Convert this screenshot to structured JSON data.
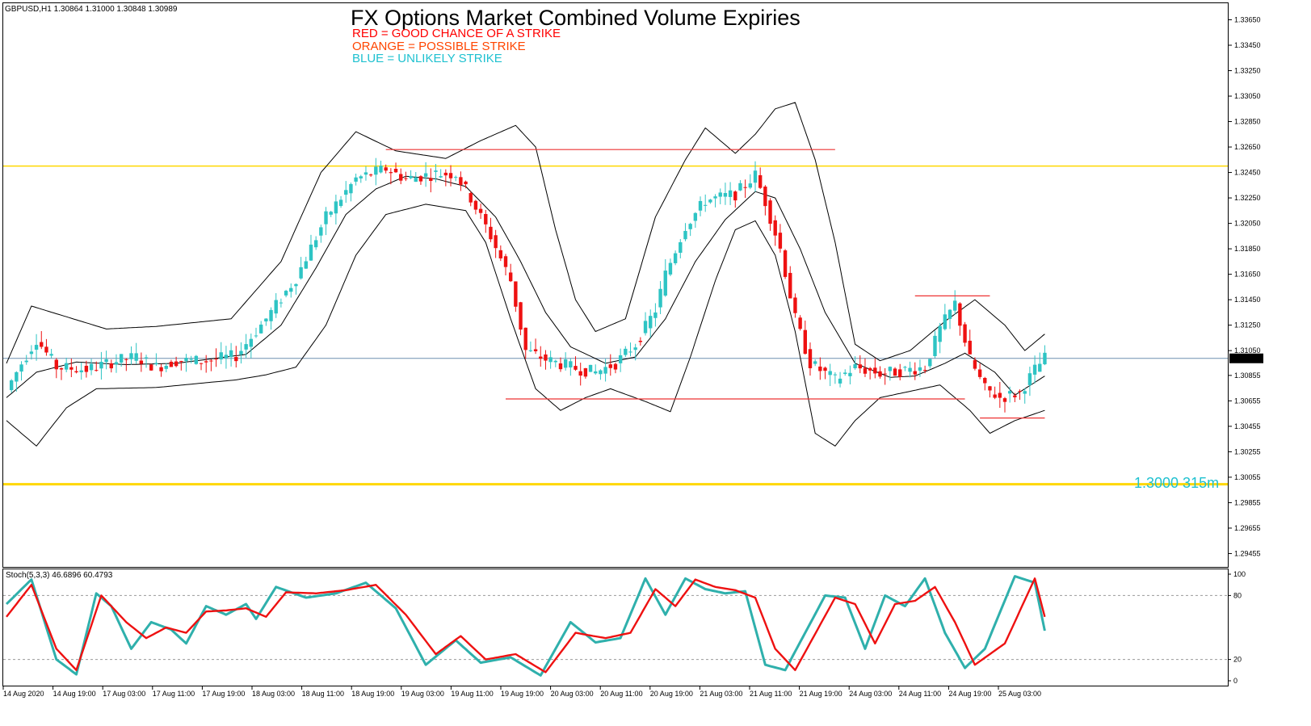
{
  "symbol_info": "GBPUSD,H1  1.30864 1.31000 1.30848 1.30989",
  "title": "FX Options Market Combined Volume Expiries",
  "legend": [
    {
      "text": "RED = GOOD CHANCE OF A STRIKE",
      "color": "#ff0000"
    },
    {
      "text": "ORANGE = POSSIBLE STRIKE",
      "color": "#ff4500"
    },
    {
      "text": "BLUE = UNLIKELY STRIKE",
      "color": "#1fc1d0"
    }
  ],
  "annotation": {
    "text": "1.3000 315m",
    "color": "#1fc1d0"
  },
  "indicator_label": "Stoch(5,3,3) 46.6896 60.4793",
  "colors": {
    "bull": "#2ec4c4",
    "bear": "#ee1111",
    "band": "#000000",
    "strike_line": "#ee3333",
    "yellow_line": "#ffd700",
    "current_line": "#6f8faf",
    "stoch_main": "#2fb0ac",
    "stoch_signal": "#ee1111"
  },
  "chart_data": {
    "type": "candlestick",
    "symbol": "GBPUSD",
    "timeframe": "H1",
    "price_axis": {
      "ticks": [
        "1.33650",
        "1.33450",
        "1.33250",
        "1.33050",
        "1.32850",
        "1.32650",
        "1.32450",
        "1.32250",
        "1.32050",
        "1.31850",
        "1.31650",
        "1.31450",
        "1.31250",
        "1.31050",
        "1.30855",
        "1.30655",
        "1.30455",
        "1.30255",
        "1.30055",
        "1.29855",
        "1.29655",
        "1.29455"
      ],
      "range": [
        1.2935,
        1.3378
      ],
      "current_price": "1.30989"
    },
    "x_axis_labels": [
      "14 Aug 2020",
      "14 Aug 19:00",
      "17 Aug 03:00",
      "17 Aug 11:00",
      "17 Aug 19:00",
      "18 Aug 03:00",
      "18 Aug 11:00",
      "18 Aug 19:00",
      "19 Aug 03:00",
      "19 Aug 11:00",
      "19 Aug 19:00",
      "20 Aug 03:00",
      "20 Aug 11:00",
      "20 Aug 19:00",
      "21 Aug 03:00",
      "21 Aug 11:00",
      "21 Aug 19:00",
      "24 Aug 03:00",
      "24 Aug 11:00",
      "24 Aug 19:00",
      "25 Aug 03:00"
    ],
    "close_path": [
      [
        0,
        1.3074
      ],
      [
        3,
        1.3095
      ],
      [
        6,
        1.3114
      ],
      [
        10,
        1.3092
      ],
      [
        16,
        1.309
      ],
      [
        22,
        1.3097
      ],
      [
        26,
        1.31
      ],
      [
        30,
        1.3092
      ],
      [
        34,
        1.3097
      ],
      [
        40,
        1.3097
      ],
      [
        46,
        1.3101
      ],
      [
        52,
        1.313
      ],
      [
        58,
        1.3162
      ],
      [
        64,
        1.321
      ],
      [
        70,
        1.324
      ],
      [
        76,
        1.3248
      ],
      [
        80,
        1.324
      ],
      [
        86,
        1.3244
      ],
      [
        90,
        1.3244
      ],
      [
        93,
        1.3225
      ],
      [
        97,
        1.3195
      ],
      [
        101,
        1.316
      ],
      [
        104,
        1.3105
      ],
      [
        108,
        1.3098
      ],
      [
        114,
        1.3091
      ],
      [
        118,
        1.3088
      ],
      [
        122,
        1.3095
      ],
      [
        126,
        1.311
      ],
      [
        130,
        1.3137
      ],
      [
        132,
        1.3165
      ],
      [
        136,
        1.3203
      ],
      [
        140,
        1.3223
      ],
      [
        146,
        1.3228
      ],
      [
        150,
        1.3243
      ],
      [
        152,
        1.3222
      ],
      [
        155,
        1.3185
      ],
      [
        158,
        1.313
      ],
      [
        161,
        1.3095
      ],
      [
        166,
        1.3082
      ],
      [
        170,
        1.3092
      ],
      [
        175,
        1.3087
      ],
      [
        179,
        1.3089
      ],
      [
        184,
        1.3092
      ],
      [
        187,
        1.3122
      ],
      [
        190,
        1.3142
      ],
      [
        193,
        1.3098
      ],
      [
        196,
        1.3075
      ],
      [
        199,
        1.3068
      ],
      [
        203,
        1.3072
      ],
      [
        206,
        1.309
      ],
      [
        208,
        1.3099
      ]
    ],
    "bollinger": {
      "upper": [
        [
          0,
          1.3095
        ],
        [
          5,
          1.314
        ],
        [
          10,
          1.3134
        ],
        [
          20,
          1.3122
        ],
        [
          30,
          1.3124
        ],
        [
          45,
          1.313
        ],
        [
          55,
          1.3175
        ],
        [
          63,
          1.3245
        ],
        [
          70,
          1.3277
        ],
        [
          78,
          1.3262
        ],
        [
          88,
          1.3256
        ],
        [
          95,
          1.327
        ],
        [
          102,
          1.3282
        ],
        [
          106,
          1.3265
        ],
        [
          110,
          1.32
        ],
        [
          114,
          1.3145
        ],
        [
          118,
          1.312
        ],
        [
          124,
          1.313
        ],
        [
          130,
          1.321
        ],
        [
          136,
          1.3255
        ],
        [
          140,
          1.328
        ],
        [
          146,
          1.326
        ],
        [
          150,
          1.3275
        ],
        [
          154,
          1.3295
        ],
        [
          158,
          1.33
        ],
        [
          162,
          1.3255
        ],
        [
          166,
          1.319
        ],
        [
          170,
          1.311
        ],
        [
          175,
          1.3097
        ],
        [
          181,
          1.3105
        ],
        [
          188,
          1.3128
        ],
        [
          194,
          1.3145
        ],
        [
          200,
          1.3125
        ],
        [
          204,
          1.3105
        ],
        [
          208,
          1.3118
        ]
      ],
      "middle": [
        [
          0,
          1.3068
        ],
        [
          6,
          1.3088
        ],
        [
          14,
          1.3096
        ],
        [
          24,
          1.3094
        ],
        [
          34,
          1.3095
        ],
        [
          48,
          1.3102
        ],
        [
          55,
          1.3125
        ],
        [
          62,
          1.317
        ],
        [
          68,
          1.3212
        ],
        [
          74,
          1.3232
        ],
        [
          80,
          1.3242
        ],
        [
          86,
          1.324
        ],
        [
          92,
          1.3234
        ],
        [
          98,
          1.321
        ],
        [
          103,
          1.3175
        ],
        [
          108,
          1.3135
        ],
        [
          113,
          1.3108
        ],
        [
          120,
          1.3095
        ],
        [
          126,
          1.31
        ],
        [
          132,
          1.313
        ],
        [
          138,
          1.3175
        ],
        [
          144,
          1.3208
        ],
        [
          150,
          1.323
        ],
        [
          154,
          1.3225
        ],
        [
          159,
          1.3185
        ],
        [
          164,
          1.3135
        ],
        [
          170,
          1.3095
        ],
        [
          177,
          1.3084
        ],
        [
          182,
          1.3085
        ],
        [
          188,
          1.3095
        ],
        [
          192,
          1.3103
        ],
        [
          198,
          1.3088
        ],
        [
          202,
          1.307
        ],
        [
          208,
          1.3085
        ]
      ],
      "lower": [
        [
          0,
          1.305
        ],
        [
          6,
          1.303
        ],
        [
          12,
          1.306
        ],
        [
          18,
          1.3075
        ],
        [
          30,
          1.3076
        ],
        [
          46,
          1.3082
        ],
        [
          52,
          1.3086
        ],
        [
          58,
          1.3092
        ],
        [
          64,
          1.3125
        ],
        [
          70,
          1.318
        ],
        [
          76,
          1.3212
        ],
        [
          84,
          1.322
        ],
        [
          92,
          1.3215
        ],
        [
          96,
          1.319
        ],
        [
          101,
          1.313
        ],
        [
          106,
          1.3075
        ],
        [
          111,
          1.3058
        ],
        [
          116,
          1.3068
        ],
        [
          121,
          1.3075
        ],
        [
          128,
          1.3065
        ],
        [
          133,
          1.3057
        ],
        [
          137,
          1.31
        ],
        [
          142,
          1.316
        ],
        [
          146,
          1.32
        ],
        [
          150,
          1.3207
        ],
        [
          154,
          1.318
        ],
        [
          158,
          1.312
        ],
        [
          162,
          1.304
        ],
        [
          166,
          1.303
        ],
        [
          170,
          1.305
        ],
        [
          175,
          1.3068
        ],
        [
          181,
          1.3073
        ],
        [
          187,
          1.3078
        ],
        [
          193,
          1.3058
        ],
        [
          197,
          1.304
        ],
        [
          202,
          1.305
        ],
        [
          208,
          1.3058
        ]
      ]
    },
    "horizontal_levels": [
      {
        "price": 1.325,
        "color": "yellow"
      },
      {
        "price": 1.3,
        "color": "yellow",
        "label": "1.3000 315m"
      },
      {
        "price": 1.30989,
        "color": "current"
      }
    ],
    "strike_segments": [
      {
        "price": 1.3263,
        "from_bar": 76,
        "to_bar": 166
      },
      {
        "price": 1.3067,
        "from_bar": 100,
        "to_bar": 192
      },
      {
        "price": 1.3148,
        "from_bar": 182,
        "to_bar": 197
      },
      {
        "price": 1.3052,
        "from_bar": 195,
        "to_bar": 208
      }
    ],
    "stochastic": {
      "params": "5,3,3",
      "main_value": 46.6896,
      "signal_value": 60.4793,
      "levels": [
        80,
        20
      ],
      "axis_ticks": [
        "100",
        "80",
        "20",
        "0"
      ],
      "main_path": [
        [
          0,
          72
        ],
        [
          5,
          95
        ],
        [
          10,
          20
        ],
        [
          14,
          6
        ],
        [
          18,
          82
        ],
        [
          21,
          70
        ],
        [
          25,
          30
        ],
        [
          29,
          55
        ],
        [
          33,
          48
        ],
        [
          36,
          35
        ],
        [
          40,
          70
        ],
        [
          44,
          62
        ],
        [
          48,
          72
        ],
        [
          50,
          58
        ],
        [
          54,
          88
        ],
        [
          60,
          78
        ],
        [
          66,
          82
        ],
        [
          72,
          92
        ],
        [
          78,
          68
        ],
        [
          84,
          15
        ],
        [
          90,
          38
        ],
        [
          95,
          17
        ],
        [
          101,
          22
        ],
        [
          107,
          5
        ],
        [
          113,
          55
        ],
        [
          118,
          36
        ],
        [
          123,
          40
        ],
        [
          128,
          96
        ],
        [
          132,
          62
        ],
        [
          136,
          96
        ],
        [
          140,
          86
        ],
        [
          144,
          82
        ],
        [
          148,
          84
        ],
        [
          152,
          15
        ],
        [
          156,
          10
        ],
        [
          164,
          80
        ],
        [
          168,
          78
        ],
        [
          172,
          30
        ],
        [
          176,
          80
        ],
        [
          180,
          70
        ],
        [
          184,
          96
        ],
        [
          188,
          45
        ],
        [
          192,
          12
        ],
        [
          196,
          30
        ],
        [
          202,
          98
        ],
        [
          206,
          92
        ],
        [
          208,
          47
        ]
      ],
      "signal_path": [
        [
          0,
          60
        ],
        [
          5,
          90
        ],
        [
          10,
          30
        ],
        [
          14,
          10
        ],
        [
          19,
          80
        ],
        [
          24,
          55
        ],
        [
          28,
          40
        ],
        [
          32,
          50
        ],
        [
          36,
          45
        ],
        [
          40,
          65
        ],
        [
          44,
          66
        ],
        [
          48,
          68
        ],
        [
          52,
          60
        ],
        [
          56,
          83
        ],
        [
          62,
          82
        ],
        [
          68,
          85
        ],
        [
          74,
          90
        ],
        [
          80,
          62
        ],
        [
          86,
          25
        ],
        [
          91,
          42
        ],
        [
          96,
          20
        ],
        [
          102,
          25
        ],
        [
          108,
          8
        ],
        [
          114,
          45
        ],
        [
          120,
          40
        ],
        [
          125,
          45
        ],
        [
          130,
          86
        ],
        [
          134,
          70
        ],
        [
          138,
          95
        ],
        [
          142,
          88
        ],
        [
          146,
          85
        ],
        [
          150,
          78
        ],
        [
          154,
          30
        ],
        [
          158,
          10
        ],
        [
          166,
          78
        ],
        [
          170,
          72
        ],
        [
          174,
          35
        ],
        [
          178,
          72
        ],
        [
          182,
          75
        ],
        [
          186,
          88
        ],
        [
          190,
          55
        ],
        [
          194,
          15
        ],
        [
          200,
          35
        ],
        [
          206,
          96
        ],
        [
          208,
          60
        ]
      ]
    }
  }
}
